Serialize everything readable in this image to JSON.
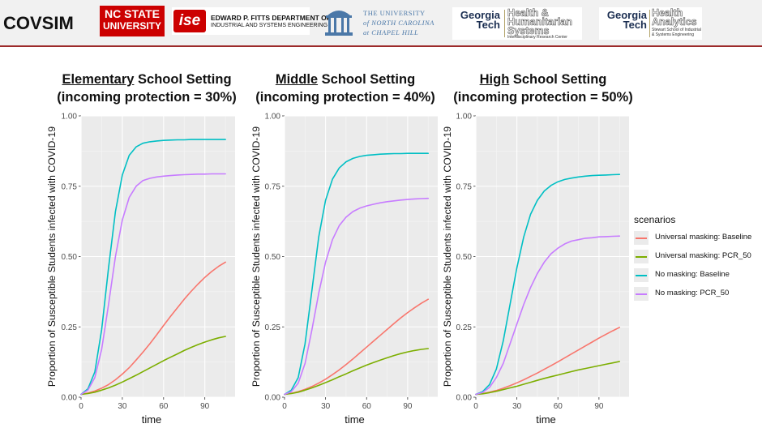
{
  "header": {
    "app_title": "COVSIM",
    "logos": {
      "ncstate_l1": "NC STATE",
      "ncstate_l2": "UNIVERSITY",
      "ise_mark": "ise",
      "ise_l1": "EDWARD P. FITTS DEPARTMENT OF",
      "ise_l2": "INDUSTRIAL AND SYSTEMS ENGINEERING",
      "unc_l1": "THE UNIVERSITY",
      "unc_l2": "of NORTH CAROLINA",
      "unc_l3": "at CHAPEL HILL",
      "gt_mark_l1": "Georgia",
      "gt_mark_l2": "Tech",
      "gt1_l1": "Health &",
      "gt1_l2": "Humanitarian",
      "gt1_l3": "Systems",
      "gt1_small": "Interdisciplinary Research Center",
      "gt2_l1": "Health",
      "gt2_l2": "Analytics",
      "gt2_small1": "Stewart School of Industrial",
      "gt2_small2": "& Systems Engineering"
    }
  },
  "panels": [
    {
      "title_underlined": "Elementary",
      "title_rest": " School Setting",
      "subtitle": "(incoming protection = 30%)"
    },
    {
      "title_underlined": "Middle",
      "title_rest": " School Setting",
      "subtitle": "(incoming protection = 40%)"
    },
    {
      "title_underlined": "High",
      "title_rest": " School Setting",
      "subtitle": "(incoming protection = 50%)"
    }
  ],
  "legend": {
    "title": "scenarios",
    "items": [
      {
        "label": "Universal masking: Baseline",
        "color": "#F8766D"
      },
      {
        "label": "Universal masking: PCR_50",
        "color": "#7CAE00"
      },
      {
        "label": "No masking: Baseline",
        "color": "#00BFC4"
      },
      {
        "label": "No masking: PCR_50",
        "color": "#C77CFF"
      }
    ]
  },
  "chart_data": [
    {
      "type": "line",
      "title": "Elementary School Setting (incoming protection = 30%)",
      "xlabel": "time",
      "ylabel": "Proportion of Susceptible Students infected with COVID-19",
      "xlim": [
        0,
        112
      ],
      "ylim": [
        0,
        1.0
      ],
      "xticks": [
        "0",
        "30",
        "60",
        "90"
      ],
      "yticks": [
        "0.00",
        "0.25",
        "0.50",
        "0.75",
        "1.00"
      ],
      "x": [
        0,
        5,
        10,
        15,
        20,
        25,
        30,
        35,
        40,
        45,
        50,
        55,
        60,
        65,
        70,
        75,
        80,
        85,
        90,
        95,
        100,
        105
      ],
      "series": [
        {
          "name": "Universal masking: Baseline",
          "values": [
            0.01,
            0.015,
            0.022,
            0.032,
            0.045,
            0.062,
            0.082,
            0.105,
            0.132,
            0.16,
            0.19,
            0.222,
            0.255,
            0.287,
            0.318,
            0.348,
            0.376,
            0.402,
            0.426,
            0.447,
            0.465,
            0.48
          ]
        },
        {
          "name": "Universal masking: PCR_50",
          "values": [
            0.01,
            0.013,
            0.018,
            0.025,
            0.033,
            0.043,
            0.054,
            0.066,
            0.078,
            0.091,
            0.104,
            0.117,
            0.13,
            0.142,
            0.154,
            0.166,
            0.177,
            0.187,
            0.196,
            0.204,
            0.211,
            0.216
          ]
        },
        {
          "name": "No masking: Baseline",
          "values": [
            0.01,
            0.03,
            0.09,
            0.24,
            0.46,
            0.66,
            0.79,
            0.86,
            0.89,
            0.903,
            0.908,
            0.911,
            0.913,
            0.914,
            0.915,
            0.915,
            0.916,
            0.916,
            0.916,
            0.916,
            0.916,
            0.916
          ]
        },
        {
          "name": "No masking: PCR_50",
          "values": [
            0.01,
            0.025,
            0.07,
            0.17,
            0.33,
            0.5,
            0.63,
            0.71,
            0.75,
            0.77,
            0.778,
            0.783,
            0.786,
            0.788,
            0.79,
            0.791,
            0.792,
            0.793,
            0.793,
            0.794,
            0.794,
            0.794
          ]
        }
      ]
    },
    {
      "type": "line",
      "title": "Middle School Setting (incoming protection = 40%)",
      "xlabel": "time",
      "ylabel": "Proportion of Susceptible Students infected with COVID-19",
      "xlim": [
        0,
        112
      ],
      "ylim": [
        0,
        1.0
      ],
      "xticks": [
        "0",
        "30",
        "60",
        "90"
      ],
      "yticks": [
        "0.00",
        "0.25",
        "0.50",
        "0.75",
        "1.00"
      ],
      "x": [
        0,
        5,
        10,
        15,
        20,
        25,
        30,
        35,
        40,
        45,
        50,
        55,
        60,
        65,
        70,
        75,
        80,
        85,
        90,
        95,
        100,
        105
      ],
      "series": [
        {
          "name": "Universal masking: Baseline",
          "values": [
            0.01,
            0.014,
            0.02,
            0.028,
            0.038,
            0.05,
            0.064,
            0.08,
            0.097,
            0.116,
            0.136,
            0.157,
            0.178,
            0.199,
            0.22,
            0.241,
            0.262,
            0.282,
            0.301,
            0.318,
            0.334,
            0.348
          ]
        },
        {
          "name": "Universal masking: PCR_50",
          "values": [
            0.01,
            0.013,
            0.018,
            0.025,
            0.033,
            0.042,
            0.052,
            0.062,
            0.073,
            0.083,
            0.094,
            0.104,
            0.114,
            0.123,
            0.132,
            0.14,
            0.148,
            0.155,
            0.161,
            0.166,
            0.17,
            0.173
          ]
        },
        {
          "name": "No masking: Baseline",
          "values": [
            0.01,
            0.025,
            0.07,
            0.19,
            0.38,
            0.57,
            0.7,
            0.775,
            0.815,
            0.837,
            0.849,
            0.856,
            0.86,
            0.862,
            0.864,
            0.865,
            0.866,
            0.866,
            0.867,
            0.867,
            0.867,
            0.867
          ]
        },
        {
          "name": "No masking: PCR_50",
          "values": [
            0.01,
            0.02,
            0.05,
            0.12,
            0.24,
            0.37,
            0.48,
            0.56,
            0.61,
            0.64,
            0.66,
            0.672,
            0.68,
            0.686,
            0.691,
            0.695,
            0.698,
            0.701,
            0.703,
            0.705,
            0.706,
            0.707
          ]
        }
      ]
    },
    {
      "type": "line",
      "title": "High School Setting (incoming protection = 50%)",
      "xlabel": "time",
      "ylabel": "Proportion of Susceptible Students infected with COVID-19",
      "xlim": [
        0,
        112
      ],
      "ylim": [
        0,
        1.0
      ],
      "xticks": [
        "0",
        "30",
        "60",
        "90"
      ],
      "yticks": [
        "0.00",
        "0.25",
        "0.50",
        "0.75",
        "1.00"
      ],
      "x": [
        0,
        5,
        10,
        15,
        20,
        25,
        30,
        35,
        40,
        45,
        50,
        55,
        60,
        65,
        70,
        75,
        80,
        85,
        90,
        95,
        100,
        105
      ],
      "series": [
        {
          "name": "Universal masking: Baseline",
          "values": [
            0.01,
            0.013,
            0.018,
            0.024,
            0.032,
            0.041,
            0.051,
            0.062,
            0.074,
            0.086,
            0.099,
            0.112,
            0.126,
            0.14,
            0.154,
            0.168,
            0.182,
            0.196,
            0.21,
            0.223,
            0.236,
            0.248
          ]
        },
        {
          "name": "Universal masking: PCR_50",
          "values": [
            0.01,
            0.012,
            0.016,
            0.021,
            0.027,
            0.033,
            0.039,
            0.046,
            0.053,
            0.06,
            0.067,
            0.073,
            0.079,
            0.085,
            0.091,
            0.097,
            0.102,
            0.107,
            0.112,
            0.117,
            0.122,
            0.127
          ]
        },
        {
          "name": "No masking: Baseline",
          "values": [
            0.01,
            0.02,
            0.045,
            0.1,
            0.2,
            0.33,
            0.46,
            0.57,
            0.65,
            0.7,
            0.733,
            0.753,
            0.766,
            0.774,
            0.779,
            0.783,
            0.786,
            0.788,
            0.789,
            0.79,
            0.791,
            0.792
          ]
        },
        {
          "name": "No masking: PCR_50",
          "values": [
            0.01,
            0.017,
            0.035,
            0.07,
            0.12,
            0.19,
            0.26,
            0.33,
            0.39,
            0.44,
            0.48,
            0.51,
            0.53,
            0.545,
            0.555,
            0.56,
            0.565,
            0.567,
            0.57,
            0.571,
            0.572,
            0.573
          ]
        }
      ]
    }
  ]
}
